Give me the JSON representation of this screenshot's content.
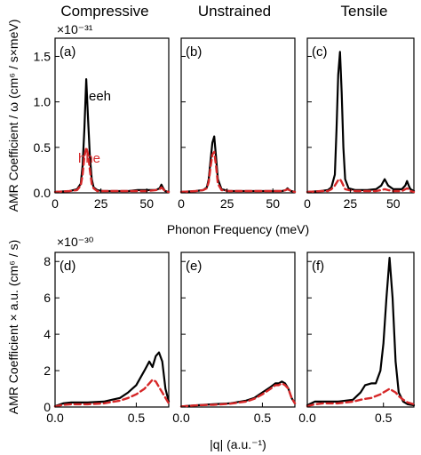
{
  "column_titles": [
    "Compressive",
    "Unstrained",
    "Tensile"
  ],
  "top_row": {
    "multiplier": "×10⁻³¹",
    "ylabel": "AMR Coefficient / ω (cm⁶ / s×meV)",
    "xlabel": "Phonon Frequency (meV)"
  },
  "bottom_row": {
    "multiplier": "×10⁻³⁰",
    "ylabel": "AMR Coefficient × a.u. (cm⁶ / s)",
    "xlabel": "|q| (a.u.⁻¹)"
  },
  "colors": {
    "eeh": "#000000",
    "hhe": "#d62728"
  },
  "chart_data": [
    {
      "type": "line",
      "panel": "(a)",
      "xlim": [
        0,
        62
      ],
      "ylim": [
        0,
        1.7
      ],
      "xticks": [
        0,
        25,
        50
      ],
      "yticks": [
        0.0,
        0.5,
        1.0,
        1.5
      ],
      "annotations": [
        {
          "text": "eeh",
          "color": "#000000"
        },
        {
          "text": "hhe",
          "color": "#d62728"
        }
      ],
      "series": [
        {
          "name": "eeh",
          "style": "solid",
          "x": [
            0,
            8,
            12,
            14,
            15,
            16,
            17,
            18,
            19,
            20,
            21,
            23,
            26,
            30,
            40,
            45,
            50,
            55,
            57,
            58,
            59,
            60,
            62
          ],
          "y": [
            0.01,
            0.02,
            0.04,
            0.1,
            0.3,
            0.7,
            1.25,
            0.8,
            0.4,
            0.15,
            0.06,
            0.03,
            0.02,
            0.02,
            0.02,
            0.03,
            0.03,
            0.03,
            0.05,
            0.09,
            0.05,
            0.02,
            0.01
          ]
        },
        {
          "name": "hhe",
          "style": "dashed",
          "x": [
            0,
            8,
            12,
            14,
            15,
            16,
            17,
            18,
            19,
            20,
            21,
            23,
            26,
            30,
            40,
            45,
            50,
            55,
            57,
            58,
            59,
            60,
            62
          ],
          "y": [
            0.01,
            0.02,
            0.03,
            0.08,
            0.2,
            0.4,
            0.5,
            0.42,
            0.25,
            0.1,
            0.05,
            0.02,
            0.02,
            0.02,
            0.02,
            0.02,
            0.02,
            0.03,
            0.04,
            0.06,
            0.04,
            0.02,
            0.01
          ]
        }
      ]
    },
    {
      "type": "line",
      "panel": "(b)",
      "xlim": [
        0,
        62
      ],
      "ylim": [
        0,
        1.7
      ],
      "xticks": [
        0,
        25,
        50
      ],
      "yticks": [
        0.0,
        0.5,
        1.0,
        1.5
      ],
      "series": [
        {
          "name": "eeh",
          "style": "solid",
          "x": [
            0,
            8,
            12,
            14,
            15,
            16,
            17,
            18,
            19,
            20,
            22,
            26,
            30,
            40,
            50,
            55,
            57,
            58,
            59,
            60,
            62
          ],
          "y": [
            0.01,
            0.02,
            0.03,
            0.06,
            0.15,
            0.35,
            0.55,
            0.62,
            0.4,
            0.15,
            0.04,
            0.02,
            0.02,
            0.02,
            0.02,
            0.02,
            0.03,
            0.05,
            0.03,
            0.02,
            0.01
          ]
        },
        {
          "name": "hhe",
          "style": "dashed",
          "x": [
            0,
            8,
            12,
            14,
            15,
            16,
            17,
            18,
            19,
            20,
            22,
            26,
            30,
            40,
            50,
            55,
            57,
            58,
            59,
            60,
            62
          ],
          "y": [
            0.01,
            0.02,
            0.03,
            0.05,
            0.12,
            0.28,
            0.42,
            0.45,
            0.3,
            0.1,
            0.03,
            0.02,
            0.02,
            0.02,
            0.02,
            0.02,
            0.03,
            0.04,
            0.03,
            0.02,
            0.01
          ]
        }
      ]
    },
    {
      "type": "line",
      "panel": "(c)",
      "xlim": [
        0,
        62
      ],
      "ylim": [
        0,
        1.7
      ],
      "xticks": [
        0,
        25,
        50
      ],
      "yticks": [
        0.0,
        0.5,
        1.0,
        1.5
      ],
      "series": [
        {
          "name": "eeh",
          "style": "solid",
          "x": [
            0,
            8,
            12,
            14,
            16,
            17,
            18,
            19,
            20,
            21,
            22,
            24,
            28,
            35,
            40,
            43,
            45,
            47,
            50,
            55,
            57,
            58,
            59,
            60,
            62
          ],
          "y": [
            0.01,
            0.02,
            0.03,
            0.06,
            0.2,
            0.7,
            1.3,
            1.55,
            1.1,
            0.5,
            0.15,
            0.05,
            0.03,
            0.03,
            0.04,
            0.08,
            0.15,
            0.08,
            0.04,
            0.04,
            0.08,
            0.13,
            0.08,
            0.04,
            0.02
          ]
        },
        {
          "name": "hhe",
          "style": "dashed",
          "x": [
            0,
            8,
            12,
            14,
            16,
            17,
            18,
            19,
            20,
            21,
            22,
            24,
            28,
            35,
            40,
            43,
            45,
            47,
            50,
            55,
            57,
            58,
            59,
            60,
            62
          ],
          "y": [
            0.01,
            0.02,
            0.02,
            0.04,
            0.08,
            0.11,
            0.14,
            0.15,
            0.12,
            0.08,
            0.04,
            0.03,
            0.02,
            0.02,
            0.02,
            0.03,
            0.04,
            0.03,
            0.02,
            0.02,
            0.04,
            0.05,
            0.04,
            0.02,
            0.01
          ]
        }
      ]
    },
    {
      "type": "line",
      "panel": "(d)",
      "xlim": [
        0,
        0.7
      ],
      "ylim": [
        0,
        8.5
      ],
      "xticks": [
        0.0,
        0.5
      ],
      "yticks": [
        0,
        2,
        4,
        6,
        8
      ],
      "series": [
        {
          "name": "eeh",
          "style": "solid",
          "x": [
            0,
            0.05,
            0.1,
            0.2,
            0.3,
            0.4,
            0.45,
            0.5,
            0.55,
            0.58,
            0.6,
            0.62,
            0.64,
            0.66,
            0.68,
            0.7
          ],
          "y": [
            0.05,
            0.2,
            0.25,
            0.25,
            0.3,
            0.5,
            0.8,
            1.2,
            2.0,
            2.5,
            2.2,
            2.8,
            3.0,
            2.5,
            1.0,
            0.3
          ]
        },
        {
          "name": "hhe",
          "style": "dashed",
          "x": [
            0,
            0.05,
            0.1,
            0.2,
            0.3,
            0.4,
            0.45,
            0.5,
            0.55,
            0.58,
            0.6,
            0.62,
            0.64,
            0.66,
            0.68,
            0.7
          ],
          "y": [
            0.03,
            0.12,
            0.15,
            0.15,
            0.2,
            0.35,
            0.5,
            0.7,
            1.0,
            1.3,
            1.5,
            1.4,
            1.1,
            0.8,
            0.5,
            0.2
          ]
        }
      ]
    },
    {
      "type": "line",
      "panel": "(e)",
      "xlim": [
        0,
        0.7
      ],
      "ylim": [
        0,
        8.5
      ],
      "xticks": [
        0.0,
        0.5
      ],
      "yticks": [
        0,
        2,
        4,
        6,
        8
      ],
      "series": [
        {
          "name": "eeh",
          "style": "solid",
          "x": [
            0,
            0.1,
            0.2,
            0.3,
            0.4,
            0.45,
            0.5,
            0.55,
            0.58,
            0.6,
            0.62,
            0.64,
            0.66,
            0.68,
            0.7
          ],
          "y": [
            0.03,
            0.1,
            0.15,
            0.2,
            0.35,
            0.5,
            0.8,
            1.1,
            1.3,
            1.3,
            1.4,
            1.3,
            1.0,
            0.5,
            0.2
          ]
        },
        {
          "name": "hhe",
          "style": "dashed",
          "x": [
            0,
            0.1,
            0.2,
            0.3,
            0.4,
            0.45,
            0.5,
            0.55,
            0.58,
            0.6,
            0.62,
            0.64,
            0.66,
            0.68,
            0.7
          ],
          "y": [
            0.03,
            0.1,
            0.12,
            0.18,
            0.3,
            0.45,
            0.7,
            1.0,
            1.2,
            1.2,
            1.3,
            1.2,
            1.0,
            0.5,
            0.2
          ]
        }
      ]
    },
    {
      "type": "line",
      "panel": "(f)",
      "xlim": [
        0,
        0.7
      ],
      "ylim": [
        0,
        8.5
      ],
      "xticks": [
        0.0,
        0.5
      ],
      "yticks": [
        0,
        2,
        4,
        6,
        8
      ],
      "series": [
        {
          "name": "eeh",
          "style": "solid",
          "x": [
            0,
            0.05,
            0.1,
            0.2,
            0.3,
            0.35,
            0.38,
            0.42,
            0.45,
            0.48,
            0.5,
            0.52,
            0.54,
            0.56,
            0.58,
            0.6,
            0.63,
            0.66,
            0.7
          ],
          "y": [
            0.1,
            0.3,
            0.3,
            0.3,
            0.4,
            0.8,
            1.2,
            1.3,
            1.3,
            2.0,
            3.5,
            6.0,
            8.2,
            6.0,
            2.5,
            0.8,
            0.3,
            0.15,
            0.1
          ]
        },
        {
          "name": "hhe",
          "style": "dashed",
          "x": [
            0,
            0.05,
            0.1,
            0.2,
            0.3,
            0.35,
            0.38,
            0.42,
            0.45,
            0.48,
            0.5,
            0.52,
            0.54,
            0.56,
            0.58,
            0.6,
            0.63,
            0.66,
            0.7
          ],
          "y": [
            0.05,
            0.15,
            0.2,
            0.2,
            0.3,
            0.4,
            0.45,
            0.5,
            0.6,
            0.7,
            0.8,
            0.9,
            1.0,
            0.9,
            0.8,
            0.6,
            0.4,
            0.25,
            0.15
          ]
        }
      ]
    }
  ]
}
